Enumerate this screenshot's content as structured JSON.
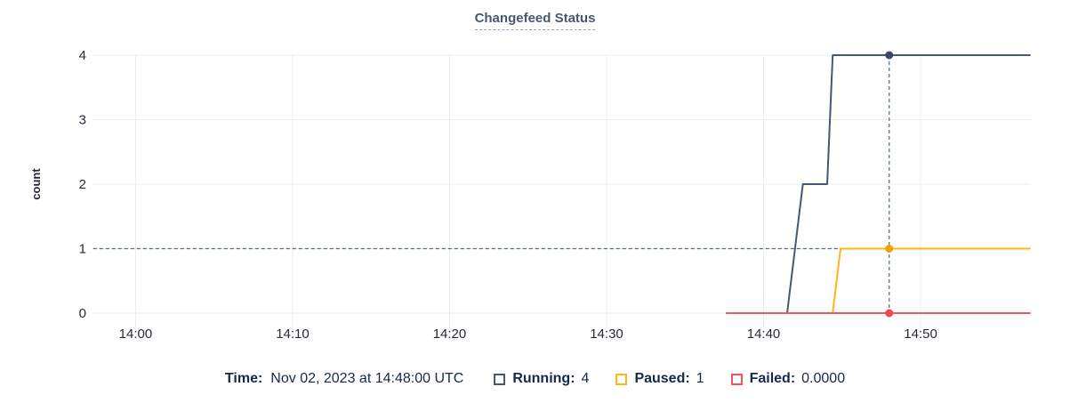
{
  "page": {
    "title": "Changefeed Status"
  },
  "tooltip_legend": {
    "time_label": "Time:",
    "time_value": "Nov 02, 2023 at 14:48:00 UTC",
    "items": [
      {
        "label": "Running:",
        "value": "4"
      },
      {
        "label": "Paused:",
        "value": "1"
      },
      {
        "label": "Failed:",
        "value": "0.0000"
      }
    ]
  },
  "chart_data": {
    "type": "line",
    "title": "Changefeed Status",
    "xlabel": "",
    "ylabel": "count",
    "x_unit": "minutes after 14:00 UTC",
    "x_domain": [
      -2.7,
      57.0
    ],
    "y_domain": [
      0,
      4
    ],
    "grid": true,
    "y_ticks": [
      0,
      1,
      2,
      3,
      4
    ],
    "x_ticks": [
      {
        "t": 0,
        "label": "14:00"
      },
      {
        "t": 10,
        "label": "14:10"
      },
      {
        "t": 20,
        "label": "14:20"
      },
      {
        "t": 30,
        "label": "14:30"
      },
      {
        "t": 40,
        "label": "14:40"
      },
      {
        "t": 50,
        "label": "14:50"
      }
    ],
    "series": [
      {
        "name": "Running",
        "color": "#475872",
        "dot_color": "#3b4a62",
        "points": [
          [
            41.5,
            0
          ],
          [
            42.5,
            2
          ],
          [
            44.05,
            2
          ],
          [
            44.4,
            4
          ],
          [
            57.0,
            4
          ]
        ]
      },
      {
        "name": "Paused",
        "color": "#fdb515",
        "dot_color": "#f2a104",
        "points": [
          [
            44.4,
            0
          ],
          [
            44.9,
            1
          ],
          [
            57.0,
            1
          ]
        ]
      },
      {
        "name": "Failed",
        "color": "#f2555c",
        "dot_color": "#f0464d",
        "points": [
          [
            37.6,
            0
          ],
          [
            57.0,
            0
          ]
        ]
      }
    ],
    "crosshair": {
      "t": 48,
      "time_label": "Nov 02, 2023 at 14:48:00 UTC",
      "color": "#4f6f72",
      "hline_value": 1,
      "values": {
        "Running": 4,
        "Paused": 1,
        "Failed": 0
      }
    },
    "colors": {
      "gridline": "#ececec",
      "tick_text": "#242a35",
      "legend_text": "#15294d",
      "title_text": "#475872"
    },
    "legend_position": "bottom"
  }
}
